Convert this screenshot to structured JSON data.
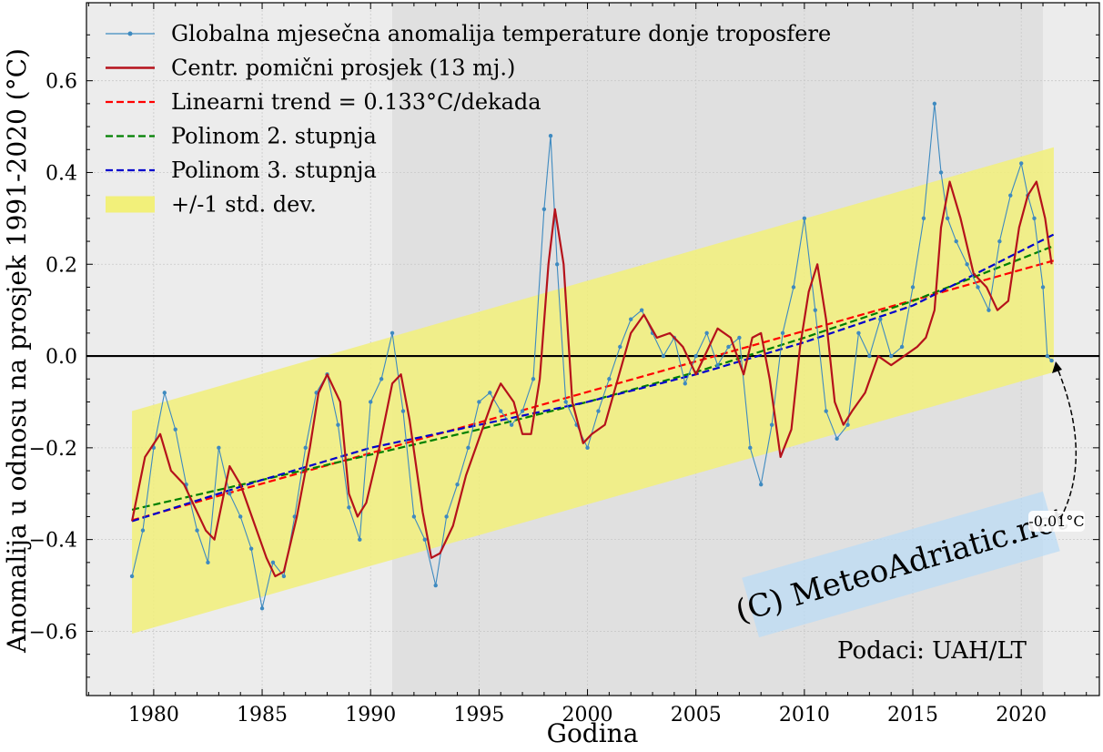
{
  "chart_data": {
    "type": "line",
    "xlabel": "Godina",
    "ylabel": "Anomalija u odnosu na prosjek 1991-2020 (°C)",
    "xlim": [
      1976.9,
      2023.6
    ],
    "ylim": [
      -0.74,
      0.77
    ],
    "x_ticks": [
      1980,
      1985,
      1990,
      1995,
      2000,
      2005,
      2010,
      2015,
      2020
    ],
    "x_tick_labels": [
      "1980",
      "1985",
      "1990",
      "1995",
      "2000",
      "2005",
      "2010",
      "2015",
      "2020"
    ],
    "y_ticks": [
      -0.6,
      -0.4,
      -0.2,
      0.0,
      0.2,
      0.4,
      0.6
    ],
    "y_tick_labels": [
      "−0.6",
      "−0.4",
      "−0.2",
      "0.0",
      "0.2",
      "0.4",
      "0.6"
    ],
    "grid": true,
    "legend_position": "top-left",
    "baseline_period": [
      1991.0,
      2021.0
    ],
    "zero_line": 0.0,
    "series": [
      {
        "name": "Globalna mjesečna anomalija temperature donje troposfere",
        "style": "line-marker",
        "x": [
          1979.0,
          1979.5,
          1980.0,
          1980.5,
          1981.0,
          1981.5,
          1982.0,
          1982.5,
          1983.0,
          1983.5,
          1984.0,
          1984.5,
          1985.0,
          1985.5,
          1986.0,
          1986.5,
          1987.0,
          1987.5,
          1988.0,
          1988.5,
          1989.0,
          1989.5,
          1990.0,
          1990.5,
          1991.0,
          1991.5,
          1992.0,
          1992.5,
          1993.0,
          1993.5,
          1994.0,
          1994.5,
          1995.0,
          1995.5,
          1996.0,
          1996.5,
          1997.0,
          1997.5,
          1998.0,
          1998.3,
          1998.6,
          1999.0,
          1999.5,
          2000.0,
          2000.5,
          2001.0,
          2001.5,
          2002.0,
          2002.5,
          2003.0,
          2003.5,
          2004.0,
          2004.5,
          2005.0,
          2005.5,
          2006.0,
          2006.5,
          2007.0,
          2007.5,
          2008.0,
          2008.5,
          2009.0,
          2009.5,
          2010.0,
          2010.5,
          2011.0,
          2011.5,
          2012.0,
          2012.5,
          2013.0,
          2013.5,
          2014.0,
          2014.5,
          2015.0,
          2015.5,
          2016.0,
          2016.3,
          2016.6,
          2017.0,
          2017.5,
          2018.0,
          2018.5,
          2019.0,
          2019.5,
          2020.0,
          2020.3,
          2020.6,
          2021.0,
          2021.2,
          2021.4
        ],
        "y": [
          -0.48,
          -0.38,
          -0.2,
          -0.08,
          -0.16,
          -0.28,
          -0.38,
          -0.45,
          -0.2,
          -0.3,
          -0.35,
          -0.42,
          -0.55,
          -0.45,
          -0.48,
          -0.35,
          -0.2,
          -0.08,
          -0.04,
          -0.15,
          -0.33,
          -0.4,
          -0.1,
          -0.05,
          0.05,
          -0.12,
          -0.35,
          -0.4,
          -0.5,
          -0.35,
          -0.28,
          -0.2,
          -0.1,
          -0.08,
          -0.12,
          -0.15,
          -0.12,
          -0.05,
          0.32,
          0.48,
          0.2,
          -0.1,
          -0.15,
          -0.2,
          -0.12,
          -0.05,
          0.02,
          0.08,
          0.1,
          0.05,
          0.0,
          0.04,
          -0.06,
          0.0,
          0.05,
          -0.02,
          0.02,
          0.04,
          -0.2,
          -0.28,
          -0.15,
          0.05,
          0.15,
          0.3,
          0.1,
          -0.12,
          -0.18,
          -0.15,
          0.05,
          0.0,
          0.08,
          0.0,
          0.02,
          0.15,
          0.3,
          0.55,
          0.4,
          0.3,
          0.25,
          0.2,
          0.15,
          0.1,
          0.25,
          0.35,
          0.42,
          0.35,
          0.3,
          0.15,
          0.0,
          -0.01
        ],
        "color": "#3e8ac0"
      },
      {
        "name": "Centr. pomični prosjek (13 mj.)",
        "style": "line",
        "x": [
          1979.0,
          1979.6,
          1980.3,
          1980.8,
          1981.4,
          1981.8,
          1982.4,
          1982.8,
          1983.5,
          1984.0,
          1984.6,
          1985.2,
          1985.6,
          1986.0,
          1986.6,
          1987.2,
          1987.6,
          1988.0,
          1988.6,
          1989.0,
          1989.4,
          1989.8,
          1990.4,
          1991.0,
          1991.4,
          1991.8,
          1992.4,
          1992.8,
          1993.2,
          1993.8,
          1994.4,
          1995.0,
          1995.6,
          1996.0,
          1996.6,
          1997.0,
          1997.4,
          1997.8,
          1998.2,
          1998.5,
          1998.9,
          1999.3,
          1999.8,
          2000.2,
          2000.8,
          2001.4,
          2002.0,
          2002.6,
          2003.2,
          2003.8,
          2004.4,
          2005.0,
          2005.6,
          2006.0,
          2006.6,
          2007.2,
          2007.6,
          2008.0,
          2008.4,
          2008.9,
          2009.4,
          2009.8,
          2010.2,
          2010.6,
          2011.0,
          2011.4,
          2011.8,
          2012.2,
          2012.8,
          2013.4,
          2014.0,
          2014.6,
          2015.2,
          2015.6,
          2016.0,
          2016.3,
          2016.7,
          2017.2,
          2017.8,
          2018.4,
          2018.9,
          2019.4,
          2019.9,
          2020.3,
          2020.7,
          2021.1,
          2021.4
        ],
        "y": [
          -0.36,
          -0.22,
          -0.17,
          -0.25,
          -0.28,
          -0.32,
          -0.38,
          -0.4,
          -0.24,
          -0.28,
          -0.36,
          -0.44,
          -0.48,
          -0.47,
          -0.35,
          -0.2,
          -0.08,
          -0.04,
          -0.1,
          -0.3,
          -0.35,
          -0.32,
          -0.2,
          -0.06,
          -0.04,
          -0.14,
          -0.34,
          -0.44,
          -0.43,
          -0.37,
          -0.26,
          -0.18,
          -0.1,
          -0.06,
          -0.1,
          -0.17,
          -0.17,
          -0.05,
          0.2,
          0.32,
          0.2,
          -0.1,
          -0.19,
          -0.17,
          -0.15,
          -0.05,
          0.05,
          0.09,
          0.04,
          0.05,
          0.02,
          -0.04,
          0.02,
          0.06,
          0.04,
          -0.04,
          0.04,
          0.05,
          -0.05,
          -0.22,
          -0.16,
          0.02,
          0.14,
          0.2,
          0.08,
          -0.1,
          -0.15,
          -0.12,
          -0.08,
          0.0,
          -0.02,
          0.0,
          0.02,
          0.04,
          0.1,
          0.28,
          0.38,
          0.3,
          0.18,
          0.15,
          0.1,
          0.12,
          0.28,
          0.35,
          0.38,
          0.3,
          0.2
        ],
        "color": "#b5121b"
      },
      {
        "name": "Linearni trend = 0.133°C/dekada",
        "style": "dashed",
        "x": [
          1979.0,
          2021.5
        ],
        "y": [
          -0.358,
          0.208
        ],
        "color": "#ff0000"
      },
      {
        "name": "Polinom 2. stupnja",
        "style": "dashed",
        "x": [
          1979.0,
          1985.0,
          1990.0,
          1995.0,
          2000.0,
          2005.0,
          2010.0,
          2015.0,
          2021.5
        ],
        "y": [
          -0.335,
          -0.27,
          -0.215,
          -0.16,
          -0.1,
          -0.035,
          0.04,
          0.12,
          0.24
        ],
        "color": "#008000"
      },
      {
        "name": "Polinom 3. stupnja",
        "style": "dashed",
        "x": [
          1979.0,
          1985.0,
          1990.0,
          1995.0,
          2000.0,
          2005.0,
          2010.0,
          2015.0,
          2021.5
        ],
        "y": [
          -0.36,
          -0.27,
          -0.2,
          -0.15,
          -0.1,
          -0.04,
          0.03,
          0.11,
          0.265
        ],
        "color": "#0000cc"
      },
      {
        "name": "+/-1 std. dev.",
        "style": "band",
        "x": [
          1979.0,
          2021.5
        ],
        "lower": [
          -0.605,
          -0.035
        ],
        "upper": [
          -0.12,
          0.455
        ],
        "color": "#f2f07a"
      }
    ],
    "annotations": {
      "last_value_label": "-0.01°C",
      "source": "Podaci:  UAH/LT",
      "watermark": "(C) MeteoAdriatic.net"
    }
  }
}
